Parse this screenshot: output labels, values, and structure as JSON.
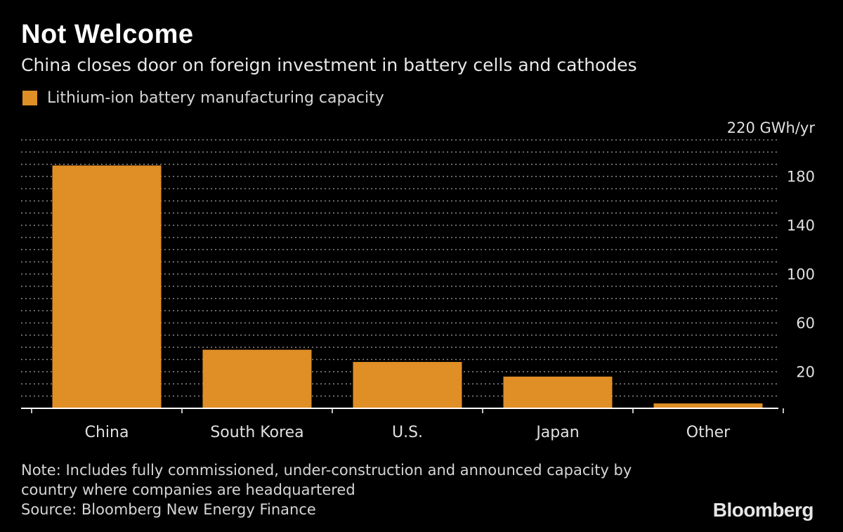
{
  "header": {
    "title": "Not Welcome",
    "subtitle": "China closes door on foreign investment in battery cells and cathodes"
  },
  "legend": {
    "label": "Lithium-ion battery manufacturing capacity",
    "color": "#e08e26"
  },
  "chart_data": {
    "type": "bar",
    "categories": [
      "China",
      "South Korea",
      "U.S.",
      "Japan",
      "Other"
    ],
    "series": [
      {
        "name": "Lithium-ion battery manufacturing capacity",
        "values": [
          199,
          48,
          38,
          26,
          4
        ]
      }
    ],
    "ylim": [
      0,
      220
    ],
    "yticks": [
      20,
      60,
      100,
      140,
      180,
      220
    ],
    "ytick_labels": [
      "20",
      "60",
      "100",
      "140",
      "180",
      "220 GWh/yr"
    ],
    "grid": true,
    "legend_position": "top-left",
    "bar_color": "#e08e26"
  },
  "footer": {
    "note_line1": "Note: Includes fully commissioned, under-construction and announced capacity by",
    "note_line2": "country where companies are headquartered",
    "source": "Source: Bloomberg New Energy Finance",
    "logo": "Bloomberg"
  }
}
